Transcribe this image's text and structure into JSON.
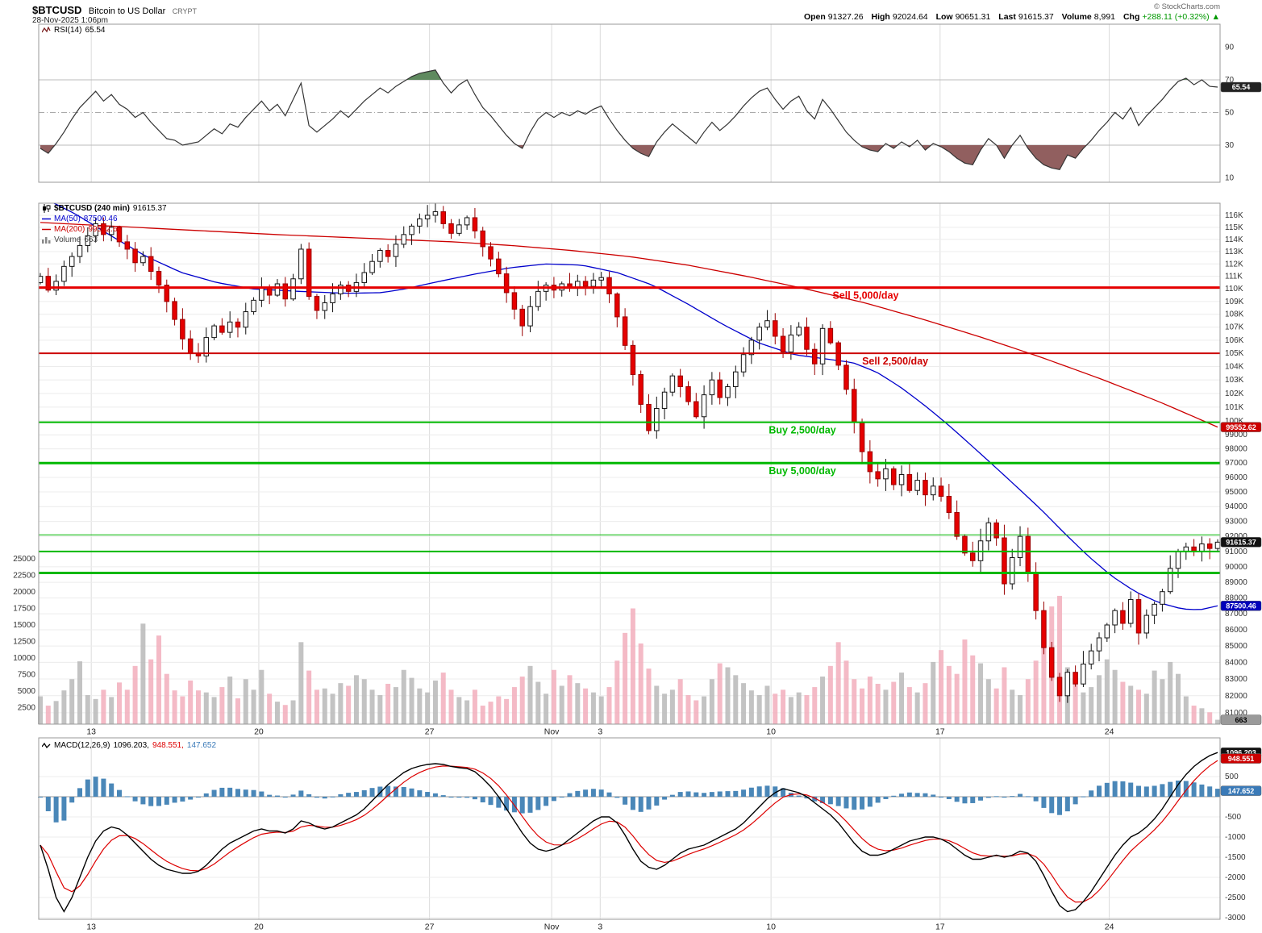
{
  "header": {
    "symbol": "$BTCUSD",
    "name": "Bitcoin to US Dollar",
    "exchange": "CRYPT",
    "datetime": "28-Nov-2025 1:06pm",
    "copyright": "© StockCharts.com",
    "quote": {
      "open_label": "Open",
      "open_value": "91327.26",
      "high_label": "High",
      "high_value": "92024.64",
      "low_label": "Low",
      "low_value": "90651.31",
      "last_label": "Last",
      "last_value": "91615.37",
      "volume_label": "Volume",
      "volume_value": "8,991",
      "chg_label": "Chg",
      "chg_value": "+288.11 (+0.32%)",
      "chg_arrow": "▲"
    }
  },
  "legends": {
    "rsi_label": "RSI(14)",
    "rsi_value": "65.54",
    "price_rows": [
      {
        "label": "$BTCUSD (240 min)",
        "value": "91615.37"
      },
      {
        "label": "MA(50)",
        "value": "87500.46"
      },
      {
        "label": "MA(200)",
        "value": "99552.62"
      },
      {
        "label": "Volume",
        "value": "663"
      }
    ],
    "macd_label": "MACD(12,26,9)",
    "macd_v1": "1096.203,",
    "macd_v2": "948.551,",
    "macd_v3": "147.652"
  },
  "colors": {
    "up_candle": "#ffffff",
    "up_stroke": "#111111",
    "down_candle": "#e60000",
    "down_stroke": "#990000",
    "ma50": "#0000cc",
    "ma200": "#cc0000",
    "macd_line": "#000000",
    "signal_line": "#dd0000",
    "histogram": "#4a87b8",
    "vol_up": "#b8b8b8",
    "vol_down": "#f2aebc",
    "grid": "#ececec",
    "vgrid": "#dcdcdc",
    "border": "#999999",
    "rsi_line": "#333333",
    "rsi_over": "#5f8a5f",
    "rsi_under": "#915f5f",
    "sell": "#e60000",
    "buy": "#00b800"
  },
  "chart_data": {
    "type": "candlestick",
    "title": "$BTCUSD Bitcoin to US Dollar (240 min) with RSI(14), MA(50), MA(200), Volume and MACD(12,26,9)",
    "n_points": 150,
    "xticks": [
      {
        "label": "13",
        "f": 0.0445
      },
      {
        "label": "20",
        "f": 0.1863
      },
      {
        "label": "27",
        "f": 0.3308
      },
      {
        "label": "Nov",
        "f": 0.4342
      },
      {
        "label": "3",
        "f": 0.4753
      },
      {
        "label": "10",
        "f": 0.6199
      },
      {
        "label": "17",
        "f": 0.763
      },
      {
        "label": "24",
        "f": 0.9062
      }
    ],
    "panels": {
      "rsi": {
        "type": "line",
        "label": "RSI(14)",
        "last": 65.54,
        "yticks": [
          90,
          70,
          50,
          30,
          10
        ],
        "overbought": 70,
        "midline": 50,
        "oversold": 30,
        "box": {
          "text": "65.54",
          "bg": "#222222",
          "fg": "#ffffff"
        },
        "values": [
          28,
          25,
          31,
          38,
          46,
          53,
          58,
          63,
          57,
          61,
          55,
          52,
          47,
          50,
          44,
          39,
          34,
          33,
          30,
          31,
          32,
          36,
          40,
          37,
          43,
          41,
          47,
          52,
          57,
          51,
          55,
          48,
          58,
          68,
          42,
          38,
          42,
          46,
          51,
          47,
          52,
          57,
          61,
          65,
          62,
          66,
          69,
          72,
          74,
          75,
          76,
          68,
          62,
          67,
          70,
          61,
          53,
          48,
          42,
          36,
          31,
          28,
          38,
          46,
          50,
          47,
          50,
          48,
          51,
          49,
          52,
          54,
          46,
          39,
          33,
          28,
          25,
          23,
          32,
          38,
          43,
          39,
          35,
          31,
          38,
          44,
          39,
          43,
          48,
          54,
          59,
          63,
          65,
          58,
          52,
          57,
          60,
          51,
          46,
          58,
          52,
          45,
          38,
          33,
          29,
          27,
          26,
          31,
          28,
          32,
          29,
          33,
          27,
          31,
          29,
          26,
          22,
          19,
          18,
          27,
          34,
          30,
          22,
          30,
          36,
          28,
          22,
          18,
          16,
          15,
          24,
          22,
          28,
          33,
          39,
          44,
          50,
          46,
          53,
          42,
          48,
          53,
          58,
          64,
          69,
          71,
          67,
          70,
          66,
          65.54
        ]
      },
      "price": {
        "type": "candlestick",
        "scale": "log",
        "first_open": 110500,
        "last": 91615.37,
        "ymin": 81000,
        "ymax": 116000,
        "ytick_step": 1000,
        "closes": [
          111000,
          109900,
          110600,
          111800,
          112600,
          113500,
          114300,
          115300,
          114400,
          115000,
          113800,
          113200,
          112100,
          112600,
          111400,
          110300,
          109000,
          107600,
          106100,
          105000,
          104800,
          106200,
          107100,
          106600,
          107400,
          107000,
          108200,
          109100,
          110100,
          109500,
          110400,
          109200,
          110800,
          113200,
          109400,
          108300,
          108900,
          109600,
          110300,
          109800,
          110500,
          111300,
          112200,
          113100,
          112600,
          113600,
          114400,
          115100,
          115700,
          116000,
          116300,
          115300,
          114500,
          115200,
          115800,
          114700,
          113400,
          112400,
          111200,
          109700,
          108400,
          107100,
          108600,
          109800,
          110300,
          109900,
          110400,
          110100,
          110600,
          110200,
          110700,
          110900,
          109600,
          107800,
          105600,
          103400,
          101200,
          99300,
          100900,
          102100,
          103300,
          102500,
          101400,
          100300,
          101900,
          103000,
          101700,
          102500,
          103600,
          104900,
          106000,
          107000,
          107500,
          106300,
          105100,
          106400,
          107000,
          105300,
          104200,
          106900,
          105800,
          104100,
          102300,
          99900,
          97800,
          96400,
          95900,
          96600,
          95500,
          96200,
          95100,
          95800,
          94800,
          95400,
          94700,
          93600,
          92000,
          90900,
          90400,
          91700,
          92900,
          91900,
          88900,
          90600,
          92000,
          89600,
          87200,
          84900,
          83100,
          82000,
          83400,
          82700,
          83900,
          84700,
          85500,
          86300,
          87200,
          86400,
          87900,
          85800,
          86900,
          87600,
          88400,
          89900,
          91000,
          91300,
          91000,
          91500,
          91200,
          91615.37
        ],
        "ma50": {
          "label": "MA(50)",
          "last": 87500.46,
          "keypoints": [
            [
              0,
              117600
            ],
            [
              0.03,
              116100
            ],
            [
              0.06,
              114300
            ],
            [
              0.09,
              112600
            ],
            [
              0.12,
              111300
            ],
            [
              0.15,
              110500
            ],
            [
              0.18,
              110000
            ],
            [
              0.22,
              109800
            ],
            [
              0.26,
              109650
            ],
            [
              0.29,
              109700
            ],
            [
              0.31,
              110000
            ],
            [
              0.334,
              110500
            ],
            [
              0.37,
              111200
            ],
            [
              0.4,
              111700
            ],
            [
              0.43,
              112000
            ],
            [
              0.46,
              111900
            ],
            [
              0.49,
              111300
            ],
            [
              0.52,
              110300
            ],
            [
              0.55,
              108800
            ],
            [
              0.58,
              107200
            ],
            [
              0.61,
              105800
            ],
            [
              0.64,
              104900
            ],
            [
              0.665,
              104600
            ],
            [
              0.69,
              104300
            ],
            [
              0.71,
              103600
            ],
            [
              0.73,
              102500
            ],
            [
              0.75,
              101200
            ],
            [
              0.77,
              99800
            ],
            [
              0.79,
              98300
            ],
            [
              0.81,
              96800
            ],
            [
              0.83,
              95300
            ],
            [
              0.85,
              93800
            ],
            [
              0.87,
              92200
            ],
            [
              0.89,
              90700
            ],
            [
              0.91,
              89400
            ],
            [
              0.93,
              88400
            ],
            [
              0.95,
              87700
            ],
            [
              0.97,
              87300
            ],
            [
              0.985,
              87250
            ],
            [
              1,
              87500.46
            ]
          ]
        },
        "ma200": {
          "label": "MA(200)",
          "last": 99552.62,
          "keypoints": [
            [
              0,
              115400
            ],
            [
              0.1,
              114900
            ],
            [
              0.2,
              114400
            ],
            [
              0.3,
              114000
            ],
            [
              0.35,
              113800
            ],
            [
              0.4,
              113500
            ],
            [
              0.45,
              113100
            ],
            [
              0.5,
              112600
            ],
            [
              0.55,
              111900
            ],
            [
              0.6,
              111000
            ],
            [
              0.65,
              110000
            ],
            [
              0.7,
              108900
            ],
            [
              0.75,
              107600
            ],
            [
              0.8,
              106200
            ],
            [
              0.85,
              104700
            ],
            [
              0.9,
              103100
            ],
            [
              0.95,
              101400
            ],
            [
              1,
              99552.62
            ]
          ]
        },
        "volume": {
          "label": "Volume",
          "last": 663,
          "ytick_max": 25000,
          "ytick_step": 2500,
          "values": [
            4200,
            2800,
            3500,
            5100,
            6800,
            9500,
            4400,
            3800,
            5200,
            4100,
            6300,
            5200,
            8800,
            15200,
            9800,
            13400,
            7600,
            5100,
            4200,
            6600,
            5100,
            4800,
            4100,
            5600,
            7200,
            3900,
            6800,
            5200,
            8200,
            4600,
            3400,
            2900,
            3600,
            12400,
            8100,
            5200,
            5400,
            4600,
            6200,
            5800,
            7400,
            6800,
            5200,
            4400,
            6100,
            5600,
            8200,
            7000,
            5400,
            4800,
            6600,
            7800,
            5200,
            4100,
            3600,
            5200,
            2800,
            3400,
            4200,
            3800,
            5600,
            7200,
            8800,
            6400,
            4600,
            8200,
            5800,
            7400,
            6200,
            5400,
            4800,
            4200,
            5600,
            9600,
            13800,
            17500,
            12200,
            8400,
            5800,
            4600,
            5200,
            6800,
            4400,
            3600,
            4200,
            6800,
            9200,
            8600,
            7400,
            6200,
            5100,
            4400,
            5800,
            4600,
            5200,
            4100,
            4800,
            4400,
            5600,
            7200,
            8800,
            12400,
            9600,
            6800,
            5400,
            7200,
            6100,
            5200,
            6400,
            7800,
            5600,
            4800,
            6200,
            9400,
            11200,
            8800,
            7600,
            12800,
            10400,
            9200,
            6800,
            5400,
            8600,
            5200,
            4400,
            6800,
            9600,
            12800,
            17800,
            19400,
            8600,
            6200,
            4800,
            5600,
            7400,
            9800,
            8200,
            6400,
            5800,
            5200,
            4600,
            8100,
            6800,
            9400,
            7600,
            4200,
            2800,
            2400,
            1800,
            663
          ]
        },
        "hlines": [
          {
            "value": 110100,
            "width": 3,
            "color": "#e60000",
            "label": "Sell 5,000/day",
            "label_f": 0.672
          },
          {
            "value": 105000,
            "width": 2,
            "color": "#cc0000",
            "label": "Sell 2,500/day",
            "label_f": 0.697
          },
          {
            "value": 99900,
            "width": 2,
            "color": "#00b800",
            "label": "Buy 2,500/day",
            "label_f": 0.618
          },
          {
            "value": 97000,
            "width": 3,
            "color": "#00b800",
            "label": "Buy 5,000/day",
            "label_f": 0.618
          },
          {
            "value": 92100,
            "width": 1,
            "color": "#00b800",
            "label": "",
            "label_f": 0
          },
          {
            "value": 91000,
            "width": 2,
            "color": "#00b800",
            "label": "",
            "label_f": 0
          },
          {
            "value": 89600,
            "width": 3,
            "color": "#00b800",
            "label": "",
            "label_f": 0
          }
        ],
        "boxes": [
          {
            "v": 99552.62,
            "text": "99552.62",
            "bg": "#cc0000",
            "fg": "#ffffff"
          },
          {
            "v": 91615.37,
            "text": "91615.37",
            "bg": "#111111",
            "fg": "#ffffff"
          },
          {
            "v": 87500.46,
            "text": "87500.46",
            "bg": "#0000bb",
            "fg": "#ffffff"
          }
        ],
        "volume_box": {
          "text": "663",
          "bg": "#9a9a9a",
          "fg": "#000000"
        }
      },
      "macd": {
        "type": "line+histogram",
        "label": "MACD(12,26,9)",
        "macd_last": 1096.203,
        "signal_last": 948.551,
        "hist_last": 147.652,
        "signal_period": 9,
        "yticks": [
          500,
          -500,
          -1000,
          -1500,
          -2000,
          -2500,
          -3000
        ],
        "boxes": [
          {
            "v": 1096.203,
            "text": "1096.203",
            "bg": "#111111",
            "fg": "#ffffff"
          },
          {
            "v": 948.551,
            "text": "948.551",
            "bg": "#cc0000",
            "fg": "#ffffff"
          },
          {
            "v": 147.652,
            "text": "147.652",
            "bg": "#3a7ab8",
            "fg": "#ffffff"
          }
        ],
        "values": [
          -1200,
          -1800,
          -2500,
          -2850,
          -2500,
          -2000,
          -1500,
          -1100,
          -850,
          -750,
          -800,
          -950,
          -1150,
          -1350,
          -1550,
          -1700,
          -1800,
          -1850,
          -1900,
          -1900,
          -1850,
          -1700,
          -1500,
          -1300,
          -1150,
          -1050,
          -950,
          -850,
          -800,
          -850,
          -850,
          -900,
          -800,
          -600,
          -650,
          -750,
          -800,
          -750,
          -650,
          -550,
          -450,
          -300,
          -100,
          100,
          300,
          450,
          600,
          700,
          760,
          800,
          820,
          800,
          750,
          720,
          700,
          620,
          450,
          250,
          0,
          -300,
          -600,
          -900,
          -1150,
          -1300,
          -1350,
          -1300,
          -1200,
          -1050,
          -900,
          -750,
          -600,
          -500,
          -500,
          -650,
          -950,
          -1300,
          -1600,
          -1750,
          -1800,
          -1700,
          -1550,
          -1400,
          -1300,
          -1250,
          -1200,
          -1100,
          -1000,
          -900,
          -800,
          -650,
          -450,
          -250,
          -50,
          100,
          200,
          150,
          100,
          0,
          -150,
          -300,
          -450,
          -650,
          -900,
          -1150,
          -1350,
          -1450,
          -1450,
          -1400,
          -1300,
          -1200,
          -1100,
          -1050,
          -1000,
          -1000,
          -1050,
          -1150,
          -1300,
          -1450,
          -1550,
          -1550,
          -1500,
          -1450,
          -1500,
          -1450,
          -1350,
          -1400,
          -1600,
          -1950,
          -2350,
          -2700,
          -2850,
          -2800,
          -2600,
          -2350,
          -2050,
          -1750,
          -1450,
          -1200,
          -1000,
          -900,
          -750,
          -550,
          -300,
          0,
          300,
          550,
          750,
          900,
          1020,
          1096.203
        ]
      }
    }
  }
}
